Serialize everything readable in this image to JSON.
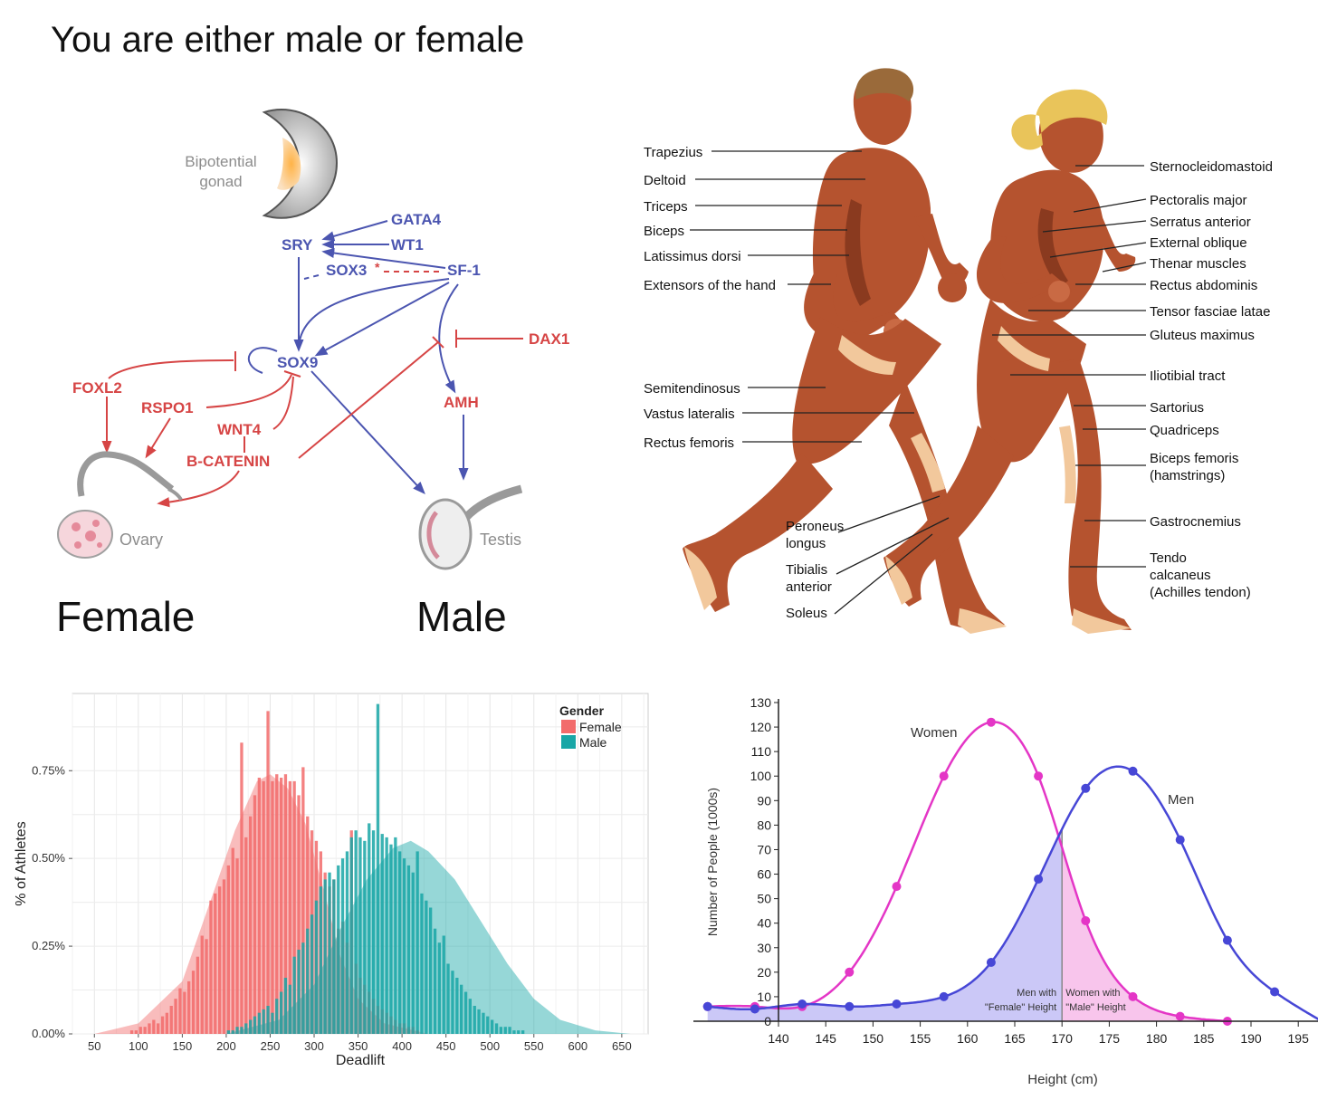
{
  "heading": "You are either male or female",
  "gonad": {
    "bipotential_lines": [
      "Bipotential",
      "gonad"
    ],
    "genes": {
      "gata4": "GATA4",
      "wt1": "WT1",
      "sry": "SRY",
      "sox3": "SOX3",
      "sox3_mark": "*",
      "sf1": "SF-1",
      "dax1": "DAX1",
      "sox9": "SOX9",
      "foxl2": "FOXL2",
      "rspo1": "RSPO1",
      "wnt4": "WNT4",
      "bcatenin": "B-CATENIN",
      "amh": "AMH"
    },
    "ovary": "Ovary",
    "testis": "Testis",
    "female": "Female",
    "male": "Male",
    "colors": {
      "male_pathway": "#4b55b0",
      "female_pathway": "#d64545",
      "organ_text": "#8c8c8c"
    }
  },
  "anatomy": {
    "left_labels": [
      "Trapezius",
      "Deltoid",
      "Triceps",
      "Biceps",
      "Latissimus dorsi",
      "Extensors of the hand",
      "Semitendinosus",
      "Vastus lateralis",
      "Rectus femoris"
    ],
    "bottom_labels": [
      [
        "Peroneus",
        "longus"
      ],
      [
        "Tibialis",
        "anterior"
      ],
      [
        "Soleus"
      ]
    ],
    "right_labels": [
      [
        "Sternocleidomastoid"
      ],
      [
        "Pectoralis major"
      ],
      [
        "Serratus anterior"
      ],
      [
        "External oblique"
      ],
      [
        "Thenar muscles"
      ],
      [
        "Rectus abdominis"
      ],
      [
        "Tensor fasciae latae"
      ],
      [
        "Gluteus maximus"
      ],
      [
        "Iliotibial tract"
      ],
      [
        "Sartorius"
      ],
      [
        "Quadriceps"
      ],
      [
        "Biceps femoris",
        "(hamstrings)"
      ],
      [
        "Gastrocnemius"
      ],
      [
        "Tendo",
        "calcaneus",
        "(Achilles tendon)"
      ]
    ],
    "colors": {
      "muscle": "#b5532f",
      "muscle_dark": "#8a3a1f",
      "tendon": "#f2c89c",
      "hair_male": "#9a6a3a",
      "hair_female": "#e9c45a"
    }
  },
  "chart_data": [
    {
      "type": "bar",
      "title": "",
      "xlabel": "Deadlift",
      "ylabel": "% of Athletes",
      "legend_title": "Gender",
      "legend_position": "top-right",
      "grid": true,
      "xlim": [
        25,
        680
      ],
      "ylim": [
        0,
        0.97
      ],
      "x_ticks": [
        50,
        100,
        150,
        200,
        250,
        300,
        350,
        400,
        450,
        500,
        550,
        600,
        650
      ],
      "y_ticks": [
        0,
        0.25,
        0.5,
        0.75
      ],
      "y_tick_labels": [
        "0.00%",
        "0.25%",
        "0.50%",
        "0.75%"
      ],
      "bin_width": 5,
      "series": [
        {
          "name": "Female",
          "color": "#f26b6b",
          "bins_start": 90,
          "values": [
            0.01,
            0.01,
            0.02,
            0.02,
            0.03,
            0.04,
            0.03,
            0.05,
            0.06,
            0.08,
            0.1,
            0.13,
            0.12,
            0.15,
            0.18,
            0.22,
            0.28,
            0.27,
            0.38,
            0.4,
            0.42,
            0.44,
            0.48,
            0.53,
            0.5,
            0.83,
            0.56,
            0.62,
            0.68,
            0.73,
            0.72,
            0.92,
            0.72,
            0.74,
            0.73,
            0.74,
            0.72,
            0.72,
            0.68,
            0.76,
            0.62,
            0.58,
            0.55,
            0.52,
            0.46,
            0.42,
            0.44,
            0.3,
            0.32,
            0.26,
            0.58,
            0.2,
            0.16,
            0.14,
            0.12,
            0.1,
            0.08,
            0.07,
            0.06,
            0.05,
            0.04,
            0.03,
            0.03,
            0.02,
            0.02,
            0.01
          ],
          "density": [
            [
              50,
              0.0
            ],
            [
              100,
              0.03
            ],
            [
              150,
              0.15
            ],
            [
              185,
              0.4
            ],
            [
              210,
              0.58
            ],
            [
              235,
              0.72
            ],
            [
              250,
              0.74
            ],
            [
              270,
              0.7
            ],
            [
              290,
              0.6
            ],
            [
              310,
              0.42
            ],
            [
              330,
              0.22
            ],
            [
              350,
              0.1
            ],
            [
              380,
              0.03
            ],
            [
              430,
              0.0
            ]
          ]
        },
        {
          "name": "Male",
          "color": "#17a6a6",
          "bins_start": 200,
          "values": [
            0.01,
            0.01,
            0.02,
            0.02,
            0.03,
            0.04,
            0.05,
            0.06,
            0.07,
            0.08,
            0.06,
            0.1,
            0.12,
            0.16,
            0.14,
            0.22,
            0.24,
            0.26,
            0.3,
            0.34,
            0.38,
            0.42,
            0.44,
            0.46,
            0.44,
            0.48,
            0.5,
            0.52,
            0.56,
            0.58,
            0.56,
            0.55,
            0.6,
            0.58,
            0.94,
            0.57,
            0.56,
            0.54,
            0.56,
            0.52,
            0.5,
            0.48,
            0.46,
            0.52,
            0.4,
            0.38,
            0.36,
            0.3,
            0.26,
            0.28,
            0.2,
            0.18,
            0.16,
            0.14,
            0.12,
            0.1,
            0.08,
            0.07,
            0.06,
            0.05,
            0.04,
            0.03,
            0.02,
            0.02,
            0.02,
            0.01,
            0.01,
            0.01
          ],
          "density": [
            [
              200,
              0.0
            ],
            [
              260,
              0.04
            ],
            [
              300,
              0.14
            ],
            [
              330,
              0.3
            ],
            [
              360,
              0.44
            ],
            [
              390,
              0.53
            ],
            [
              410,
              0.55
            ],
            [
              430,
              0.52
            ],
            [
              460,
              0.44
            ],
            [
              490,
              0.32
            ],
            [
              520,
              0.2
            ],
            [
              550,
              0.1
            ],
            [
              580,
              0.04
            ],
            [
              620,
              0.01
            ],
            [
              660,
              0.0
            ]
          ]
        }
      ]
    },
    {
      "type": "line",
      "title": "",
      "xlabel": "Height (cm)",
      "ylabel": "Number of People (1000s)",
      "xlim": [
        140,
        197
      ],
      "ylim": [
        0,
        130
      ],
      "x_ticks": [
        140,
        145,
        150,
        155,
        160,
        165,
        170,
        175,
        180,
        185,
        190,
        195
      ],
      "y_ticks": [
        0,
        10,
        20,
        30,
        40,
        50,
        60,
        70,
        80,
        90,
        100,
        110,
        120,
        130
      ],
      "threshold_x": 170,
      "series": [
        {
          "name": "Women",
          "color": "#e436c6",
          "x": [
            132.5,
            137.5,
            142.5,
            147.5,
            152.5,
            157.5,
            162.5,
            167.5,
            172.5,
            177.5,
            182.5,
            187.5
          ],
          "y": [
            6,
            6,
            6,
            20,
            55,
            100,
            122,
            100,
            41,
            10,
            2,
            0
          ]
        },
        {
          "name": "Men",
          "color": "#4747d6",
          "x": [
            132.5,
            137.5,
            142.5,
            147.5,
            152.5,
            157.5,
            162.5,
            167.5,
            172.5,
            177.5,
            182.5,
            187.5,
            192.5,
            197.5
          ],
          "y": [
            6,
            5,
            7,
            6,
            7,
            10,
            24,
            58,
            95,
            102,
            74,
            33,
            12,
            0
          ]
        }
      ],
      "annotations": [
        {
          "lines": [
            "Men with",
            "\"Female\" Height"
          ],
          "color": "#b9b6f4"
        },
        {
          "lines": [
            "Women with",
            "\"Male\" Height"
          ],
          "color": "#f5b1e6"
        }
      ]
    }
  ]
}
